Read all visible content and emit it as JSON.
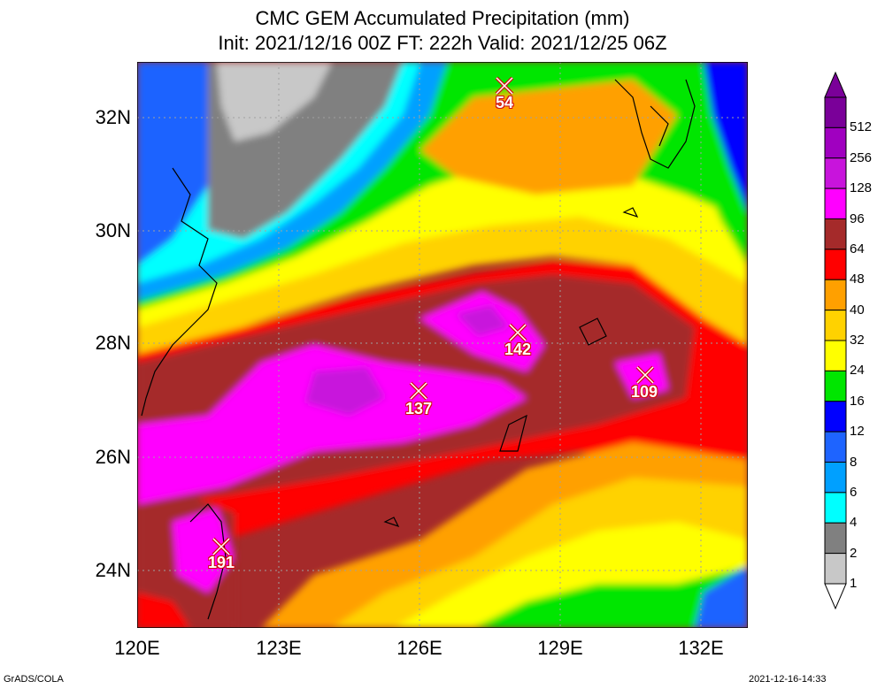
{
  "title": {
    "line1": "CMC GEM Accumulated Precipitation (mm)",
    "line2": "Init: 2021/12/16 00Z  FT: 222h  Valid: 2021/12/25 06Z"
  },
  "axes": {
    "y_ticks": [
      "32N",
      "30N",
      "28N",
      "26N",
      "24N"
    ],
    "x_ticks": [
      "120E",
      "123E",
      "126E",
      "129E",
      "132E"
    ]
  },
  "legend": {
    "labels": [
      "512",
      "256",
      "128",
      "96",
      "64",
      "48",
      "40",
      "32",
      "24",
      "16",
      "12",
      "8",
      "6",
      "4",
      "2",
      "1"
    ],
    "colors": [
      "#7a0099",
      "#a000c0",
      "#c814dc",
      "#ff00ff",
      "#a52a2a",
      "#ff0000",
      "#ffa000",
      "#ffd200",
      "#ffff00",
      "#00e600",
      "#0000ff",
      "#1e64ff",
      "#00a0ff",
      "#00ffff",
      "#808080",
      "#c8c8c8"
    ]
  },
  "markers": [
    {
      "value": "54"
    },
    {
      "value": "142"
    },
    {
      "value": "137"
    },
    {
      "value": "109"
    },
    {
      "value": "191"
    }
  ],
  "footer": {
    "left": "GrADS/COLA",
    "right": "2021-12-16-14:33"
  }
}
